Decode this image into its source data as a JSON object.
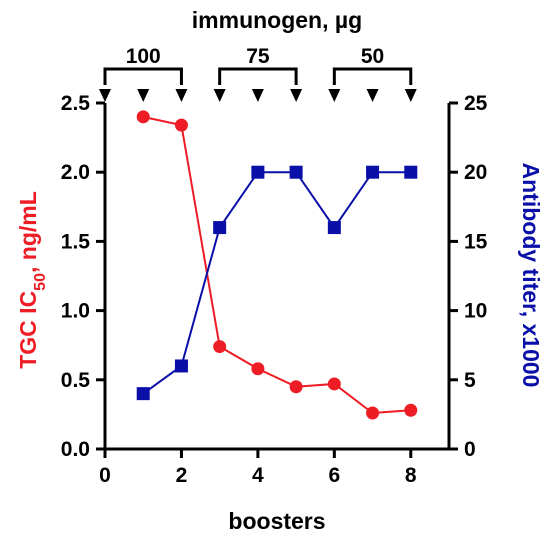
{
  "chart_data": {
    "type": "line",
    "top_label": "immunogen, µg",
    "xlabel": "boosters",
    "ylabel_left": {
      "prefix": "TGC IC",
      "sub": "50",
      "suffix": ", ng/mL"
    },
    "ylabel_right": "Antibody titer, x1000",
    "xlim": [
      0,
      9
    ],
    "ylim_left": [
      0,
      2.5
    ],
    "ylim_right": [
      0,
      25
    ],
    "x_ticks": [
      0,
      2,
      4,
      6,
      8
    ],
    "x_tick_labels": [
      "0",
      "2",
      "4",
      "6",
      "8"
    ],
    "y_left_ticks": [
      0,
      0.5,
      1.0,
      1.5,
      2.0,
      2.5
    ],
    "y_left_tick_labels": [
      "0.0",
      "0.5",
      "1.0",
      "1.5",
      "2.0",
      "2.5"
    ],
    "y_right_ticks": [
      0,
      5,
      10,
      15,
      20,
      25
    ],
    "y_right_tick_labels": [
      "0",
      "5",
      "10",
      "15",
      "20",
      "25"
    ],
    "series": [
      {
        "axis": "left",
        "color": "#ee1c25",
        "marker": "circle",
        "x": [
          1,
          2,
          3,
          4,
          5,
          6,
          7,
          8
        ],
        "y": [
          2.4,
          2.34,
          0.74,
          0.58,
          0.45,
          0.47,
          0.26,
          0.28
        ]
      },
      {
        "axis": "right",
        "color": "#0a0fa8",
        "marker": "square",
        "x": [
          1,
          2,
          3,
          4,
          5,
          6,
          7,
          8
        ],
        "y": [
          4,
          6,
          16,
          20,
          20,
          16,
          20,
          20
        ]
      }
    ],
    "injections": [
      0,
      1,
      2,
      3,
      4,
      5,
      6,
      7,
      8
    ],
    "dose_groups": [
      {
        "label": "100",
        "from": 0,
        "to": 2
      },
      {
        "label": "75",
        "from": 3,
        "to": 5
      },
      {
        "label": "50",
        "from": 6,
        "to": 8
      }
    ]
  }
}
